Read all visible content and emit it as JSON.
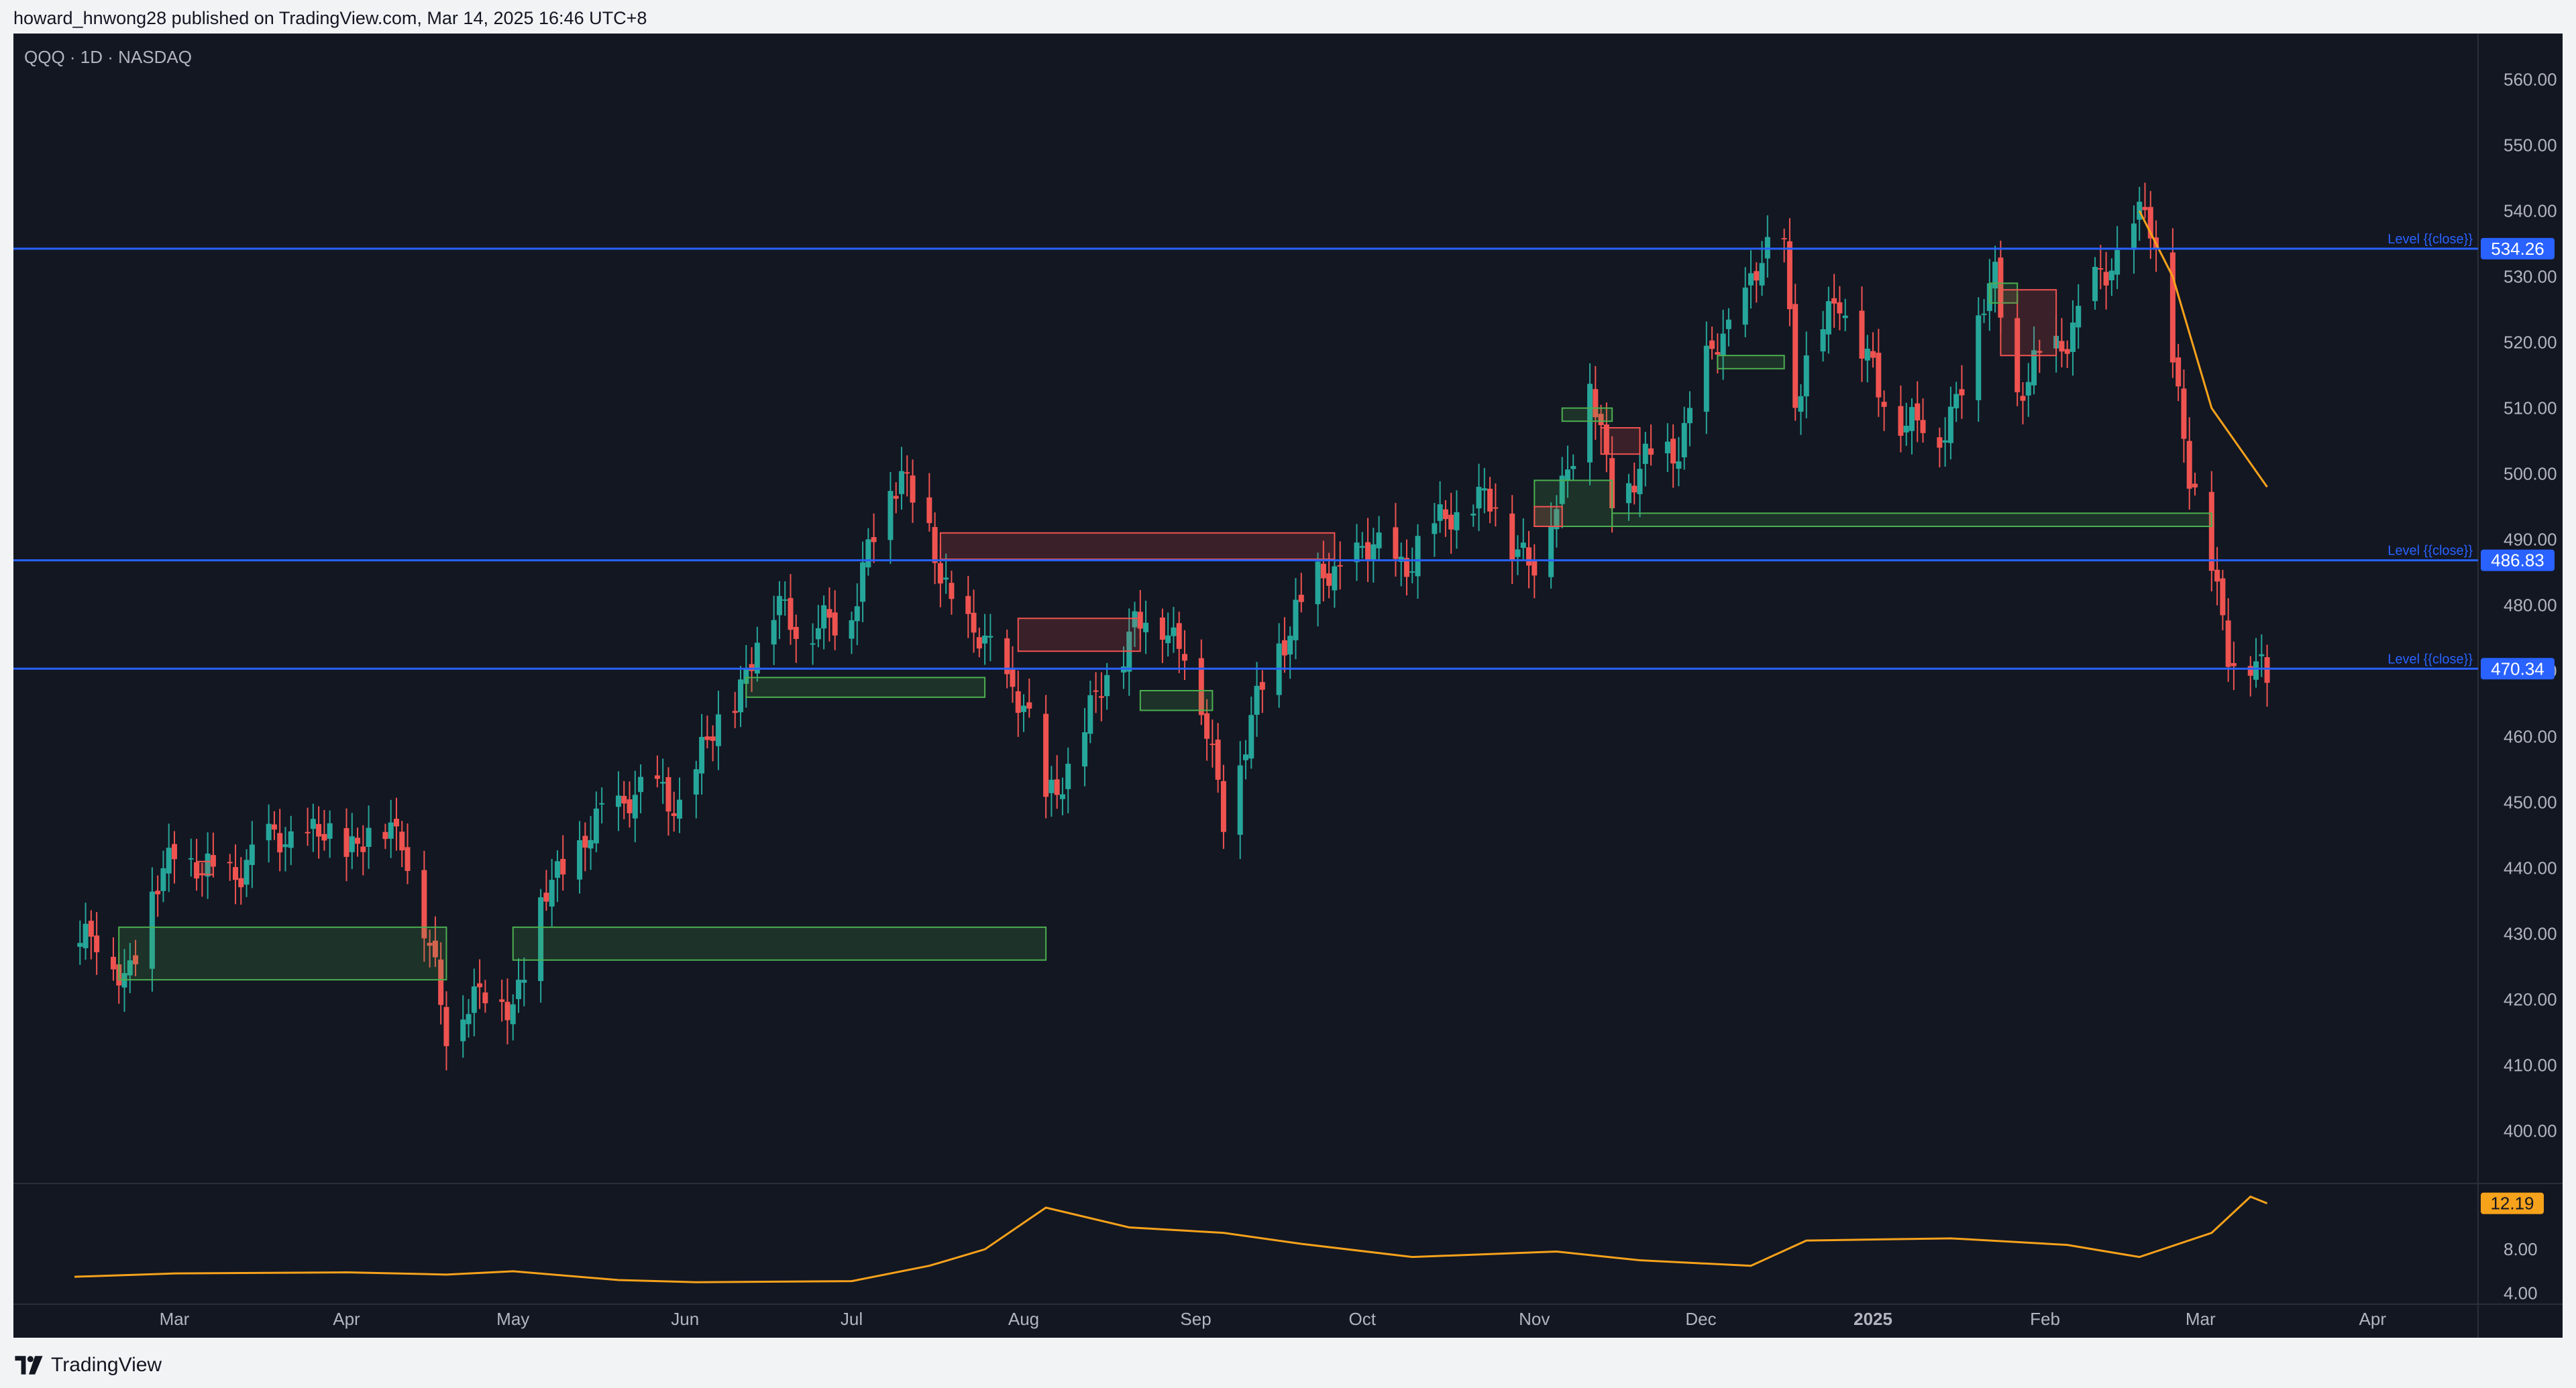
{
  "header": {
    "published_text": "howard_hnwong28 published on TradingView.com, Mar 14, 2025 16:46 UTC+8"
  },
  "symbol": {
    "info": "QQQ · 1D · NASDAQ"
  },
  "footer": {
    "brand": "TradingView",
    "logo_icon": "tradingview-logo-icon"
  },
  "colors": {
    "background": "#131722",
    "bull": "#26a69a",
    "bear": "#ef5350",
    "level_line": "#2962ff",
    "oscillator": "#f7a21b",
    "ema_line": "#f7a21b",
    "demand_zone": "#4caf50",
    "supply_zone": "#ef5350"
  },
  "chart_data": {
    "type": "candlestick",
    "symbol": "QQQ",
    "interval": "1D",
    "exchange": "NASDAQ",
    "ylim": [
      392,
      567
    ],
    "y_ticks": [
      "560.00",
      "550.00",
      "540.00",
      "530.00",
      "520.00",
      "510.00",
      "500.00",
      "490.00",
      "480.00",
      "470.00",
      "460.00",
      "450.00",
      "440.00",
      "430.00",
      "420.00",
      "410.00",
      "400.00"
    ],
    "x_tick_labels": [
      "Mar",
      "Apr",
      "May",
      "Jun",
      "Jul",
      "Aug",
      "Sep",
      "Oct",
      "Nov",
      "Dec",
      "2025",
      "Feb",
      "Mar",
      "Apr"
    ],
    "grid": false,
    "levels": [
      {
        "label": "Level {{close}}",
        "value": "534.26"
      },
      {
        "label": "Level {{close}}",
        "value": "486.83"
      },
      {
        "label": "Level {{close}}",
        "value": "470.34"
      }
    ],
    "anchors": [
      {
        "date": "2024-02-12",
        "close": 431
      },
      {
        "date": "2024-02-21",
        "close": 424
      },
      {
        "date": "2024-03-01",
        "close": 443
      },
      {
        "date": "2024-03-08",
        "close": 438
      },
      {
        "date": "2024-03-21",
        "close": 445
      },
      {
        "date": "2024-04-01",
        "close": 444
      },
      {
        "date": "2024-04-11",
        "close": 446
      },
      {
        "date": "2024-04-19",
        "close": 415
      },
      {
        "date": "2024-04-22",
        "close": 420
      },
      {
        "date": "2024-05-01",
        "close": 420
      },
      {
        "date": "2024-05-08",
        "close": 438
      },
      {
        "date": "2024-05-22",
        "close": 452
      },
      {
        "date": "2024-05-31",
        "close": 450
      },
      {
        "date": "2024-06-12",
        "close": 470
      },
      {
        "date": "2024-06-18",
        "close": 481
      },
      {
        "date": "2024-06-24",
        "close": 475
      },
      {
        "date": "2024-07-01",
        "close": 480
      },
      {
        "date": "2024-07-10",
        "close": 502
      },
      {
        "date": "2024-07-17",
        "close": 484
      },
      {
        "date": "2024-07-25",
        "close": 473
      },
      {
        "date": "2024-08-01",
        "close": 466
      },
      {
        "date": "2024-08-05",
        "close": 449
      },
      {
        "date": "2024-08-13",
        "close": 463
      },
      {
        "date": "2024-08-21",
        "close": 478
      },
      {
        "date": "2024-08-30",
        "close": 475
      },
      {
        "date": "2024-09-06",
        "close": 448
      },
      {
        "date": "2024-09-10",
        "close": 460
      },
      {
        "date": "2024-09-19",
        "close": 480
      },
      {
        "date": "2024-09-30",
        "close": 488
      },
      {
        "date": "2024-10-10",
        "close": 487
      },
      {
        "date": "2024-10-17",
        "close": 495
      },
      {
        "date": "2024-10-25",
        "close": 495
      },
      {
        "date": "2024-11-01",
        "close": 485
      },
      {
        "date": "2024-11-11",
        "close": 513
      },
      {
        "date": "2024-11-15",
        "close": 497
      },
      {
        "date": "2024-11-27",
        "close": 505
      },
      {
        "date": "2024-12-04",
        "close": 520
      },
      {
        "date": "2024-12-16",
        "close": 537
      },
      {
        "date": "2024-12-18",
        "close": 512
      },
      {
        "date": "2024-12-26",
        "close": 528
      },
      {
        "date": "2025-01-02",
        "close": 512
      },
      {
        "date": "2025-01-13",
        "close": 505
      },
      {
        "date": "2025-01-23",
        "close": 530
      },
      {
        "date": "2025-01-27",
        "close": 512
      },
      {
        "date": "2025-02-07",
        "close": 524
      },
      {
        "date": "2025-02-19",
        "close": 540
      },
      {
        "date": "2025-02-24",
        "close": 519
      },
      {
        "date": "2025-02-27",
        "close": 500
      },
      {
        "date": "2025-03-03",
        "close": 486
      },
      {
        "date": "2025-03-06",
        "close": 474
      },
      {
        "date": "2025-03-13",
        "close": 468
      }
    ],
    "ema_line": {
      "color": "#f7a21b",
      "points": [
        {
          "date": "2025-02-18",
          "value": 540
        },
        {
          "date": "2025-02-24",
          "value": 530
        },
        {
          "date": "2025-03-03",
          "value": 510
        },
        {
          "date": "2025-03-13",
          "value": 498
        }
      ]
    },
    "zones": [
      {
        "kind": "demand",
        "from": "2024-02-20",
        "to": "2024-04-19",
        "low": 423,
        "high": 431
      },
      {
        "kind": "demand",
        "from": "2024-05-01",
        "to": "2024-08-05",
        "low": 426,
        "high": 431
      },
      {
        "kind": "demand",
        "from": "2024-06-12",
        "to": "2024-07-25",
        "low": 466,
        "high": 469
      },
      {
        "kind": "demand",
        "from": "2024-08-22",
        "to": "2024-09-04",
        "low": 464,
        "high": 467
      },
      {
        "kind": "demand",
        "from": "2024-11-06",
        "to": "2024-11-15",
        "low": 508,
        "high": 510
      },
      {
        "kind": "demand",
        "from": "2024-11-01",
        "to": "2024-11-15",
        "low": 492,
        "high": 499
      },
      {
        "kind": "demand",
        "from": "2024-11-15",
        "to": "2025-03-03",
        "low": 492,
        "high": 494
      },
      {
        "kind": "demand",
        "from": "2024-12-04",
        "to": "2024-12-16",
        "low": 516,
        "high": 518
      },
      {
        "kind": "demand",
        "from": "2025-01-22",
        "to": "2025-01-27",
        "low": 526,
        "high": 529
      },
      {
        "kind": "supply",
        "from": "2024-07-17",
        "to": "2024-09-26",
        "low": 487,
        "high": 491
      },
      {
        "kind": "supply",
        "from": "2024-07-31",
        "to": "2024-08-22",
        "low": 473,
        "high": 478
      },
      {
        "kind": "supply",
        "from": "2024-11-01",
        "to": "2024-11-06",
        "low": 492,
        "high": 495
      },
      {
        "kind": "supply",
        "from": "2024-11-13",
        "to": "2024-11-20",
        "low": 503,
        "high": 507
      },
      {
        "kind": "supply",
        "from": "2025-01-24",
        "to": "2025-02-03",
        "low": 518,
        "high": 528
      },
      {
        "kind": "supply",
        "from": "2024-03-05",
        "to": "2024-03-08",
        "low": 439,
        "high": 441
      }
    ],
    "oscillator": {
      "last_value": "12.19",
      "y_ticks": [
        "8.00",
        "4.00"
      ],
      "ylim": [
        3,
        14
      ],
      "points": [
        {
          "date": "2024-02-12",
          "value": 5.5
        },
        {
          "date": "2024-03-01",
          "value": 5.8
        },
        {
          "date": "2024-04-01",
          "value": 5.9
        },
        {
          "date": "2024-04-19",
          "value": 5.7
        },
        {
          "date": "2024-05-01",
          "value": 6.0
        },
        {
          "date": "2024-05-20",
          "value": 5.2
        },
        {
          "date": "2024-06-03",
          "value": 5.0
        },
        {
          "date": "2024-07-01",
          "value": 5.1
        },
        {
          "date": "2024-07-15",
          "value": 6.5
        },
        {
          "date": "2024-07-25",
          "value": 8.0
        },
        {
          "date": "2024-08-05",
          "value": 11.8
        },
        {
          "date": "2024-08-20",
          "value": 10.0
        },
        {
          "date": "2024-09-06",
          "value": 9.5
        },
        {
          "date": "2024-09-20",
          "value": 8.5
        },
        {
          "date": "2024-10-10",
          "value": 7.3
        },
        {
          "date": "2024-11-05",
          "value": 7.8
        },
        {
          "date": "2024-11-20",
          "value": 7.0
        },
        {
          "date": "2024-12-10",
          "value": 6.5
        },
        {
          "date": "2024-12-20",
          "value": 8.8
        },
        {
          "date": "2025-01-15",
          "value": 9.0
        },
        {
          "date": "2025-02-05",
          "value": 8.4
        },
        {
          "date": "2025-02-18",
          "value": 7.3
        },
        {
          "date": "2025-03-03",
          "value": 9.5
        },
        {
          "date": "2025-03-10",
          "value": 12.8
        },
        {
          "date": "2025-03-13",
          "value": 12.19
        }
      ]
    }
  }
}
